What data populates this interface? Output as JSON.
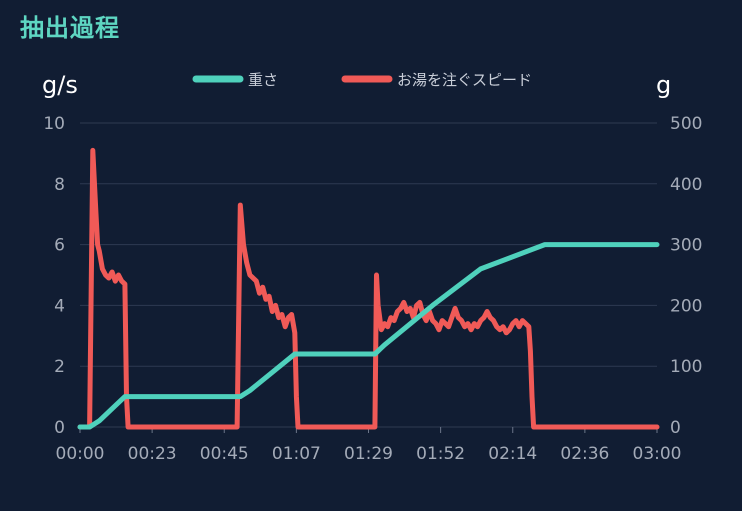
{
  "page": {
    "title": "抽出過程"
  },
  "chart_data": {
    "type": "line",
    "x_ticks": [
      "00:00",
      "00:23",
      "00:45",
      "01:07",
      "01:29",
      "01:52",
      "02:14",
      "02:36",
      "03:00"
    ],
    "x_range_seconds": [
      0,
      180
    ],
    "left_axis": {
      "unit": "g/s",
      "range": [
        0,
        10
      ],
      "ticks": [
        0,
        2,
        4,
        6,
        8,
        10
      ]
    },
    "right_axis": {
      "unit": "g",
      "range": [
        0,
        500
      ],
      "ticks": [
        0,
        100,
        200,
        300,
        400,
        500
      ]
    },
    "grid": true,
    "legend_position": "top-center",
    "series": [
      {
        "name": "重さ",
        "axis": "right",
        "color": "#4fd1bc",
        "points": [
          [
            0,
            0
          ],
          [
            3,
            0
          ],
          [
            6,
            10
          ],
          [
            9,
            25
          ],
          [
            14,
            50
          ],
          [
            50,
            50
          ],
          [
            53,
            60
          ],
          [
            60,
            90
          ],
          [
            67,
            120
          ],
          [
            92,
            120
          ],
          [
            95,
            135
          ],
          [
            110,
            200
          ],
          [
            125,
            260
          ],
          [
            145,
            300
          ],
          [
            180,
            300
          ]
        ]
      },
      {
        "name": "お湯を注ぐスピード",
        "axis": "left",
        "color": "#f05a57",
        "points": [
          [
            0,
            0
          ],
          [
            3,
            0
          ],
          [
            4,
            9.1
          ],
          [
            5,
            7
          ],
          [
            5.5,
            6
          ],
          [
            6,
            5.8
          ],
          [
            7,
            5.2
          ],
          [
            8,
            5
          ],
          [
            9,
            4.9
          ],
          [
            10,
            5.1
          ],
          [
            11,
            4.8
          ],
          [
            12,
            5
          ],
          [
            13,
            4.8
          ],
          [
            14,
            4.7
          ],
          [
            14.5,
            1
          ],
          [
            15,
            0
          ],
          [
            49,
            0
          ],
          [
            50,
            7.3
          ],
          [
            51,
            6
          ],
          [
            52,
            5.4
          ],
          [
            53,
            5
          ],
          [
            55,
            4.8
          ],
          [
            56,
            4.4
          ],
          [
            57,
            4.6
          ],
          [
            58,
            4.2
          ],
          [
            59,
            4.3
          ],
          [
            60,
            3.8
          ],
          [
            61,
            4
          ],
          [
            62,
            3.6
          ],
          [
            63,
            3.7
          ],
          [
            64,
            3.3
          ],
          [
            65,
            3.6
          ],
          [
            66,
            3.7
          ],
          [
            67,
            3.1
          ],
          [
            67.5,
            1
          ],
          [
            68,
            0
          ],
          [
            92,
            0
          ],
          [
            92.5,
            5
          ],
          [
            93,
            4
          ],
          [
            94,
            3.2
          ],
          [
            95,
            3.4
          ],
          [
            96,
            3.3
          ],
          [
            97,
            3.6
          ],
          [
            98,
            3.5
          ],
          [
            99,
            3.8
          ],
          [
            100,
            3.9
          ],
          [
            101,
            4.1
          ],
          [
            102,
            3.8
          ],
          [
            103,
            3.9
          ],
          [
            104,
            3.6
          ],
          [
            105,
            4
          ],
          [
            106,
            4.1
          ],
          [
            107,
            3.7
          ],
          [
            108,
            3.5
          ],
          [
            109,
            3.8
          ],
          [
            110,
            3.5
          ],
          [
            111,
            3.4
          ],
          [
            112,
            3.2
          ],
          [
            113,
            3.5
          ],
          [
            114,
            3.4
          ],
          [
            115,
            3.3
          ],
          [
            116,
            3.6
          ],
          [
            117,
            3.9
          ],
          [
            118,
            3.6
          ],
          [
            119,
            3.5
          ],
          [
            120,
            3.3
          ],
          [
            121,
            3.4
          ],
          [
            122,
            3.2
          ],
          [
            123,
            3.4
          ],
          [
            124,
            3.3
          ],
          [
            125,
            3.5
          ],
          [
            126,
            3.6
          ],
          [
            127,
            3.8
          ],
          [
            128,
            3.6
          ],
          [
            129,
            3.5
          ],
          [
            130,
            3.3
          ],
          [
            131,
            3.2
          ],
          [
            132,
            3.3
          ],
          [
            133,
            3.1
          ],
          [
            134,
            3.2
          ],
          [
            135,
            3.4
          ],
          [
            136,
            3.5
          ],
          [
            137,
            3.3
          ],
          [
            138,
            3.5
          ],
          [
            139,
            3.4
          ],
          [
            140,
            3.3
          ],
          [
            140.5,
            2.5
          ],
          [
            141,
            1
          ],
          [
            141.5,
            0
          ],
          [
            180,
            0
          ]
        ]
      }
    ]
  }
}
